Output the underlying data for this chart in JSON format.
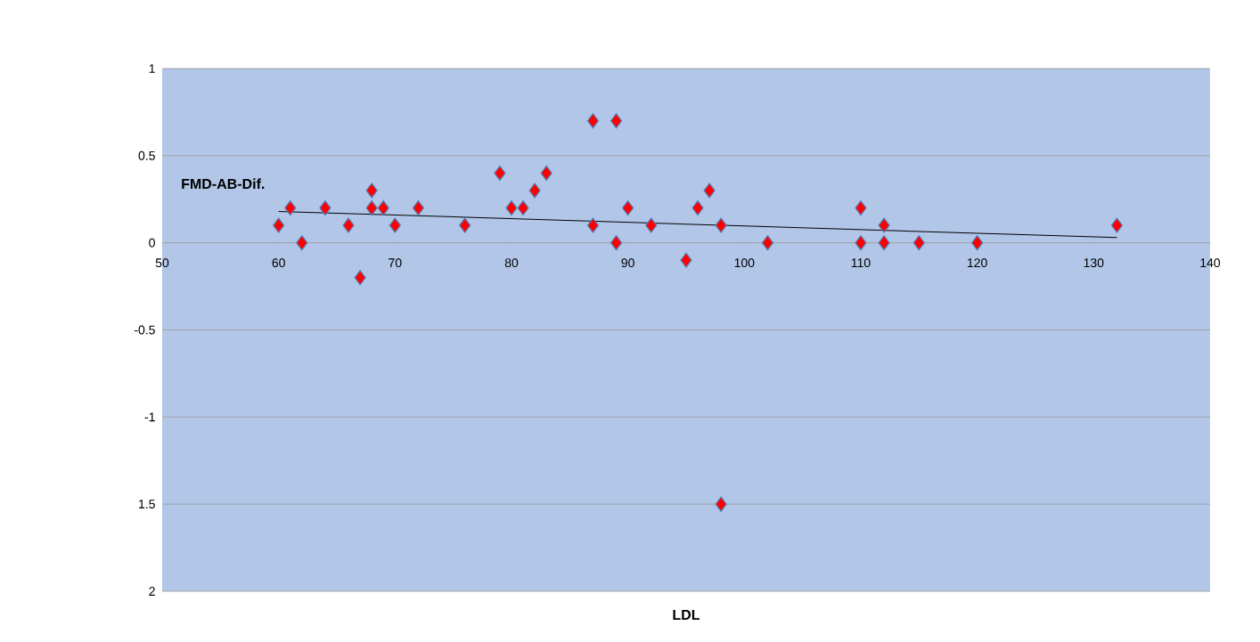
{
  "chart_data": {
    "type": "scatter",
    "xlabel": "LDL",
    "ylabel": "FMD-AB-Dif.",
    "xlim": [
      50,
      140
    ],
    "xticks": [
      {
        "value": 50,
        "label": "50"
      },
      60,
      70,
      80,
      90,
      100,
      110,
      120,
      130,
      140
    ],
    "ylim": [
      -2,
      1
    ],
    "yticks": [
      {
        "value": -2,
        "label": "2"
      },
      {
        "value": -1.5,
        "label": "1.5"
      },
      -1,
      -0.5,
      0,
      0.5,
      1
    ],
    "grid": "y",
    "marker": "diamond",
    "series": [
      {
        "color": "#ff0000",
        "x": [
          60,
          61,
          62,
          64,
          66,
          67,
          68,
          68,
          69,
          70,
          72,
          76,
          79,
          80,
          81,
          82,
          83,
          87,
          87,
          89,
          89,
          90,
          92,
          95,
          96,
          97,
          98,
          98,
          102,
          110,
          110,
          112,
          112,
          115,
          120,
          132
        ],
        "values": [
          0.1,
          0.2,
          0,
          0.2,
          0.1,
          -0.2,
          0.3,
          0.2,
          0.2,
          0.1,
          0.2,
          0.1,
          0.4,
          0.2,
          0.2,
          0.3,
          0.4,
          0.7,
          0.1,
          0.7,
          0,
          0.2,
          0.1,
          -0.1,
          0.2,
          0.3,
          0.1,
          -1.5,
          0,
          0.2,
          0,
          0.1,
          0,
          0,
          0,
          0.1
        ]
      },
      {
        "type": "line",
        "color": "#000000",
        "marker": "none",
        "x": [
          60,
          132
        ],
        "values": [
          0.18,
          0.03
        ]
      }
    ]
  }
}
